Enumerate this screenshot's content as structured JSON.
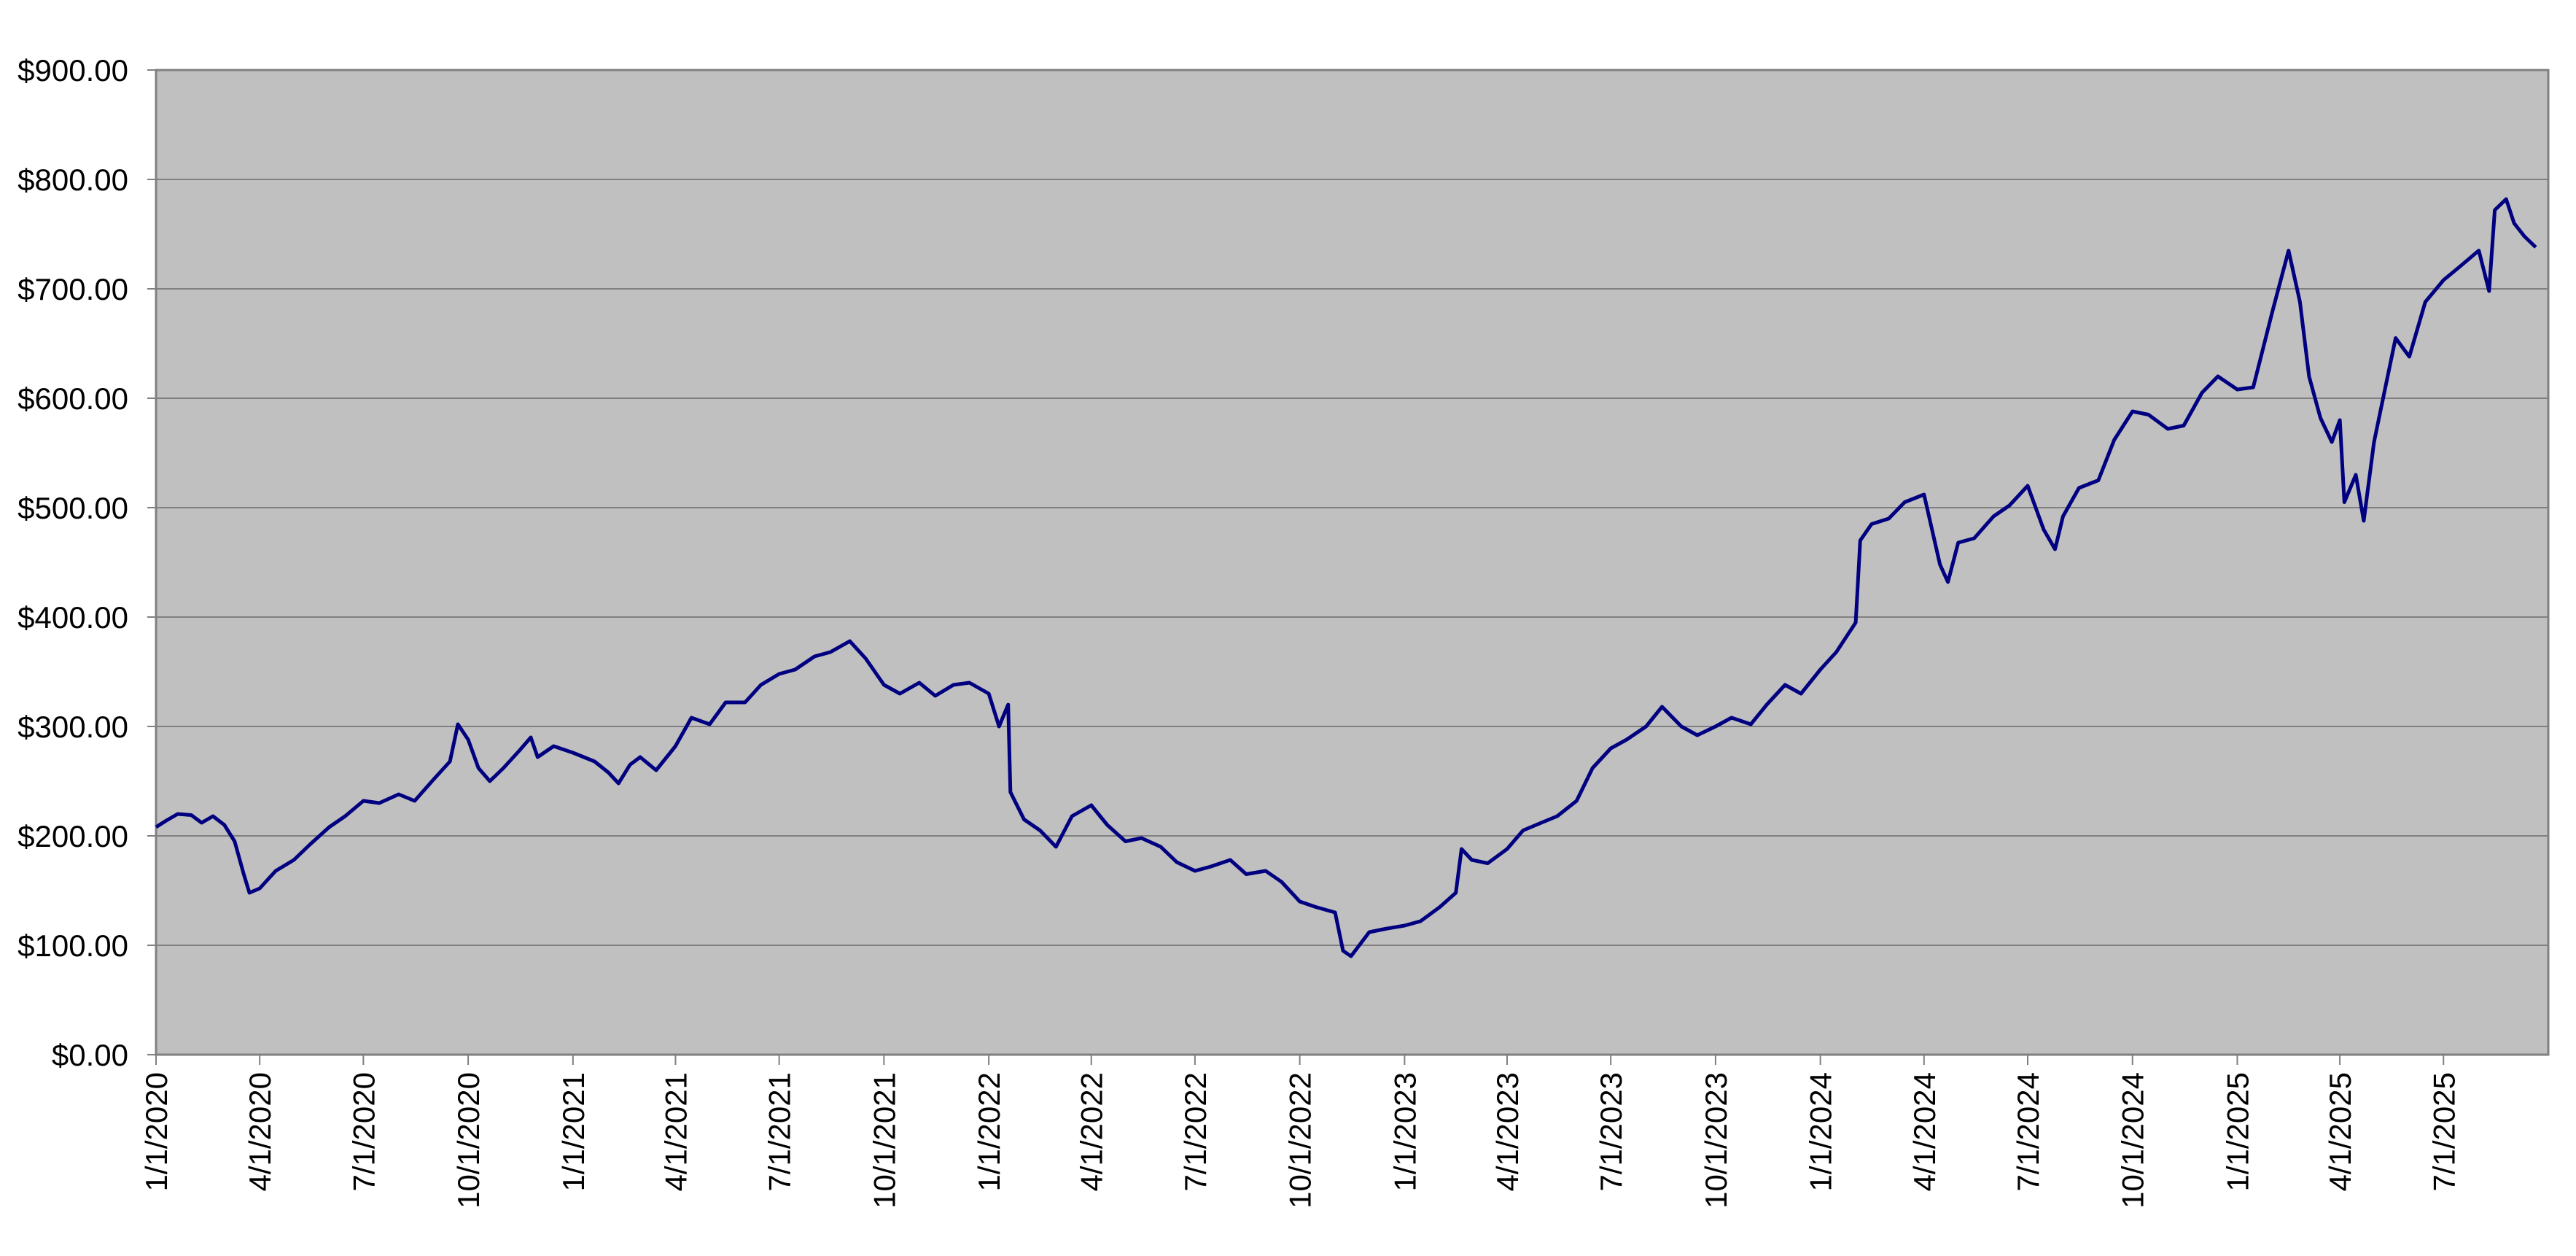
{
  "colors": {
    "plot_background": "#c0c0c0",
    "gridline": "#808080",
    "series_line": "#000080",
    "axis_line": "#808080"
  },
  "chart_data": {
    "type": "line",
    "x_axis": {
      "type": "date",
      "range": [
        "2020-01-01",
        "2025-10-01"
      ],
      "tick_labels": [
        "1/1/2020",
        "4/1/2020",
        "7/1/2020",
        "10/1/2020",
        "1/1/2021",
        "4/1/2021",
        "7/1/2021",
        "10/1/2021",
        "1/1/2022",
        "4/1/2022",
        "7/1/2022",
        "10/1/2022",
        "1/1/2023",
        "4/1/2023",
        "7/1/2023",
        "10/1/2023",
        "1/1/2024",
        "4/1/2024",
        "7/1/2024",
        "10/1/2024",
        "1/1/2025",
        "4/1/2025",
        "7/1/2025"
      ],
      "tick_dates": [
        "2020-01-01",
        "2020-04-01",
        "2020-07-01",
        "2020-10-01",
        "2021-01-01",
        "2021-04-01",
        "2021-07-01",
        "2021-10-01",
        "2022-01-01",
        "2022-04-01",
        "2022-07-01",
        "2022-10-01",
        "2023-01-01",
        "2023-04-01",
        "2023-07-01",
        "2023-10-01",
        "2024-01-01",
        "2024-04-01",
        "2024-07-01",
        "2024-10-01",
        "2025-01-01",
        "2025-04-01",
        "2025-07-01"
      ]
    },
    "y_axis": {
      "range": [
        0,
        900
      ],
      "ticks": [
        0,
        100,
        200,
        300,
        400,
        500,
        600,
        700,
        800,
        900
      ],
      "tick_labels": [
        "$0.00",
        "$100.00",
        "$200.00",
        "$300.00",
        "$400.00",
        "$500.00",
        "$600.00",
        "$700.00",
        "$800.00",
        "$900.00"
      ]
    },
    "grid": {
      "horizontal": true,
      "vertical": false
    },
    "legend": "none",
    "series": [
      {
        "points": [
          [
            "2020-01-01",
            208
          ],
          [
            "2020-01-10",
            214
          ],
          [
            "2020-01-20",
            220
          ],
          [
            "2020-02-01",
            219
          ],
          [
            "2020-02-10",
            212
          ],
          [
            "2020-02-20",
            218
          ],
          [
            "2020-03-01",
            210
          ],
          [
            "2020-03-10",
            195
          ],
          [
            "2020-03-18",
            165
          ],
          [
            "2020-03-23",
            148
          ],
          [
            "2020-04-01",
            152
          ],
          [
            "2020-04-15",
            168
          ],
          [
            "2020-05-01",
            178
          ],
          [
            "2020-05-15",
            192
          ],
          [
            "2020-06-01",
            208
          ],
          [
            "2020-06-15",
            218
          ],
          [
            "2020-07-01",
            232
          ],
          [
            "2020-07-15",
            230
          ],
          [
            "2020-08-01",
            238
          ],
          [
            "2020-08-15",
            232
          ],
          [
            "2020-09-01",
            252
          ],
          [
            "2020-09-15",
            268
          ],
          [
            "2020-09-22",
            302
          ],
          [
            "2020-10-01",
            288
          ],
          [
            "2020-10-10",
            262
          ],
          [
            "2020-10-20",
            250
          ],
          [
            "2020-11-01",
            262
          ],
          [
            "2020-11-15",
            278
          ],
          [
            "2020-11-25",
            290
          ],
          [
            "2020-12-01",
            272
          ],
          [
            "2020-12-15",
            282
          ],
          [
            "2021-01-01",
            276
          ],
          [
            "2021-01-20",
            268
          ],
          [
            "2021-02-01",
            258
          ],
          [
            "2021-02-10",
            248
          ],
          [
            "2021-02-20",
            265
          ],
          [
            "2021-03-01",
            272
          ],
          [
            "2021-03-15",
            260
          ],
          [
            "2021-04-01",
            282
          ],
          [
            "2021-04-15",
            308
          ],
          [
            "2021-05-01",
            302
          ],
          [
            "2021-05-15",
            322
          ],
          [
            "2021-06-01",
            322
          ],
          [
            "2021-06-15",
            338
          ],
          [
            "2021-07-01",
            348
          ],
          [
            "2021-07-15",
            352
          ],
          [
            "2021-08-01",
            364
          ],
          [
            "2021-08-15",
            368
          ],
          [
            "2021-09-01",
            378
          ],
          [
            "2021-09-15",
            362
          ],
          [
            "2021-10-01",
            338
          ],
          [
            "2021-10-15",
            330
          ],
          [
            "2021-11-01",
            340
          ],
          [
            "2021-11-15",
            328
          ],
          [
            "2021-12-01",
            338
          ],
          [
            "2021-12-15",
            340
          ],
          [
            "2022-01-01",
            330
          ],
          [
            "2022-01-10",
            300
          ],
          [
            "2022-01-18",
            320
          ],
          [
            "2022-01-20",
            240
          ],
          [
            "2022-02-01",
            215
          ],
          [
            "2022-02-15",
            205
          ],
          [
            "2022-03-01",
            190
          ],
          [
            "2022-03-15",
            218
          ],
          [
            "2022-04-01",
            228
          ],
          [
            "2022-04-15",
            210
          ],
          [
            "2022-05-01",
            195
          ],
          [
            "2022-05-15",
            198
          ],
          [
            "2022-06-01",
            190
          ],
          [
            "2022-06-15",
            176
          ],
          [
            "2022-07-01",
            168
          ],
          [
            "2022-07-15",
            172
          ],
          [
            "2022-08-01",
            178
          ],
          [
            "2022-08-15",
            165
          ],
          [
            "2022-09-01",
            168
          ],
          [
            "2022-09-15",
            158
          ],
          [
            "2022-10-01",
            140
          ],
          [
            "2022-10-15",
            135
          ],
          [
            "2022-11-01",
            130
          ],
          [
            "2022-11-08",
            95
          ],
          [
            "2022-11-15",
            90
          ],
          [
            "2022-12-01",
            112
          ],
          [
            "2022-12-15",
            115
          ],
          [
            "2023-01-01",
            118
          ],
          [
            "2023-01-15",
            122
          ],
          [
            "2023-02-01",
            135
          ],
          [
            "2023-02-15",
            148
          ],
          [
            "2023-02-20",
            188
          ],
          [
            "2023-03-01",
            178
          ],
          [
            "2023-03-15",
            175
          ],
          [
            "2023-04-01",
            188
          ],
          [
            "2023-04-15",
            205
          ],
          [
            "2023-05-01",
            212
          ],
          [
            "2023-05-15",
            218
          ],
          [
            "2023-06-01",
            232
          ],
          [
            "2023-06-15",
            262
          ],
          [
            "2023-07-01",
            280
          ],
          [
            "2023-07-15",
            288
          ],
          [
            "2023-08-01",
            300
          ],
          [
            "2023-08-15",
            318
          ],
          [
            "2023-09-01",
            300
          ],
          [
            "2023-09-15",
            292
          ],
          [
            "2023-10-01",
            300
          ],
          [
            "2023-10-15",
            308
          ],
          [
            "2023-11-01",
            302
          ],
          [
            "2023-11-15",
            320
          ],
          [
            "2023-12-01",
            338
          ],
          [
            "2023-12-15",
            330
          ],
          [
            "2024-01-01",
            352
          ],
          [
            "2024-01-15",
            368
          ],
          [
            "2024-02-01",
            395
          ],
          [
            "2024-02-05",
            470
          ],
          [
            "2024-02-15",
            485
          ],
          [
            "2024-03-01",
            490
          ],
          [
            "2024-03-15",
            505
          ],
          [
            "2024-04-01",
            512
          ],
          [
            "2024-04-15",
            448
          ],
          [
            "2024-04-22",
            432
          ],
          [
            "2024-05-01",
            468
          ],
          [
            "2024-05-15",
            472
          ],
          [
            "2024-06-01",
            492
          ],
          [
            "2024-06-15",
            502
          ],
          [
            "2024-07-01",
            520
          ],
          [
            "2024-07-15",
            480
          ],
          [
            "2024-07-25",
            462
          ],
          [
            "2024-08-01",
            492
          ],
          [
            "2024-08-15",
            518
          ],
          [
            "2024-09-01",
            525
          ],
          [
            "2024-09-15",
            562
          ],
          [
            "2024-10-01",
            588
          ],
          [
            "2024-10-15",
            585
          ],
          [
            "2024-11-01",
            572
          ],
          [
            "2024-11-15",
            575
          ],
          [
            "2024-12-01",
            605
          ],
          [
            "2024-12-15",
            620
          ],
          [
            "2025-01-01",
            608
          ],
          [
            "2025-01-15",
            610
          ],
          [
            "2025-02-01",
            680
          ],
          [
            "2025-02-15",
            735
          ],
          [
            "2025-02-25",
            688
          ],
          [
            "2025-03-05",
            620
          ],
          [
            "2025-03-15",
            582
          ],
          [
            "2025-03-25",
            560
          ],
          [
            "2025-04-01",
            580
          ],
          [
            "2025-04-05",
            505
          ],
          [
            "2025-04-15",
            530
          ],
          [
            "2025-04-22",
            488
          ],
          [
            "2025-05-01",
            560
          ],
          [
            "2025-05-10",
            605
          ],
          [
            "2025-05-20",
            655
          ],
          [
            "2025-06-01",
            638
          ],
          [
            "2025-06-15",
            688
          ],
          [
            "2025-07-01",
            708
          ],
          [
            "2025-07-15",
            720
          ],
          [
            "2025-08-01",
            735
          ],
          [
            "2025-08-10",
            698
          ],
          [
            "2025-08-15",
            772
          ],
          [
            "2025-08-25",
            782
          ],
          [
            "2025-09-01",
            760
          ],
          [
            "2025-09-10",
            748
          ],
          [
            "2025-09-20",
            738
          ]
        ]
      }
    ]
  }
}
